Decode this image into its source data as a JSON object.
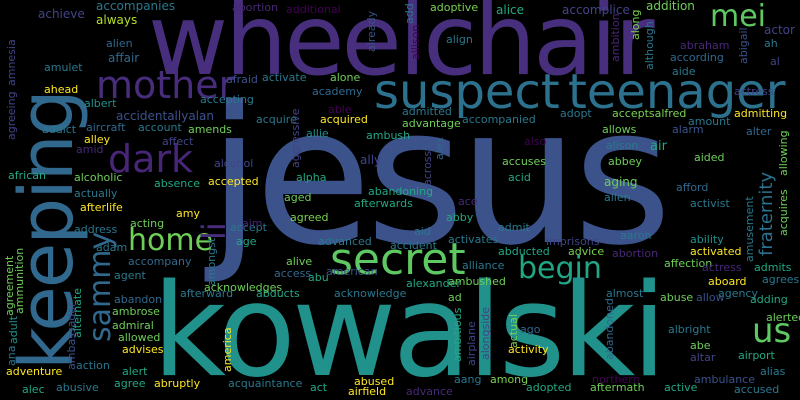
{
  "words": [
    {
      "text": "jesus",
      "color": "#3b528b"
    },
    {
      "text": "kowalski",
      "color": "#21918c"
    },
    {
      "text": "wheelchair",
      "color": "#472f7d"
    },
    {
      "text": "keeping",
      "color": "#31688e"
    },
    {
      "text": "suspect",
      "color": "#2c728e"
    },
    {
      "text": "teenager",
      "color": "#2c728e"
    },
    {
      "text": "mother",
      "color": "#472d7b"
    },
    {
      "text": "secret",
      "color": "#5ec962"
    },
    {
      "text": "home",
      "color": "#6ece58"
    },
    {
      "text": "dark",
      "color": "#482677"
    },
    {
      "text": "mei",
      "color": "#5ec962"
    },
    {
      "text": "begin",
      "color": "#21a685"
    },
    {
      "text": "sammy",
      "color": "#31688e"
    },
    {
      "text": "us",
      "color": "#5ec962"
    },
    {
      "text": "li",
      "color": "#472d7b"
    },
    {
      "text": "fraternity",
      "color": "#2c728e"
    },
    {
      "text": "always",
      "color": "#b5de2b"
    },
    {
      "text": "achieve",
      "color": "#414487"
    },
    {
      "text": "accompanies",
      "color": "#2a788e"
    },
    {
      "text": "abortion",
      "color": "#482878"
    },
    {
      "text": "additional",
      "color": "#440154"
    },
    {
      "text": "alice",
      "color": "#22a884"
    },
    {
      "text": "accomplice",
      "color": "#414487"
    },
    {
      "text": "addition",
      "color": "#6ece58"
    },
    {
      "text": "adoptive",
      "color": "#7ad151"
    },
    {
      "text": "add",
      "color": "#2a788e"
    },
    {
      "text": "already",
      "color": "#3b528b"
    },
    {
      "text": "allison",
      "color": "#440154"
    },
    {
      "text": "align",
      "color": "#2a788e"
    },
    {
      "text": "ambition",
      "color": "#482878"
    },
    {
      "text": "along",
      "color": "#7ad151"
    },
    {
      "text": "although",
      "color": "#2a788e"
    },
    {
      "text": "alien",
      "color": "#31688e"
    },
    {
      "text": "affair",
      "color": "#31688e"
    },
    {
      "text": "amulet",
      "color": "#2a788e"
    },
    {
      "text": "amnesia",
      "color": "#414487"
    },
    {
      "text": "agreeing",
      "color": "#414487"
    },
    {
      "text": "actor",
      "color": "#414487"
    },
    {
      "text": "ah",
      "color": "#2a788e"
    },
    {
      "text": "abraham",
      "color": "#482878"
    },
    {
      "text": "abigail",
      "color": "#3b528b"
    },
    {
      "text": "according",
      "color": "#31688e"
    },
    {
      "text": "aide",
      "color": "#2a788e"
    },
    {
      "text": "al",
      "color": "#414487"
    },
    {
      "text": "actress",
      "color": "#414487"
    },
    {
      "text": "alpha",
      "color": "#22a884"
    },
    {
      "text": "ahead",
      "color": "#fde725"
    },
    {
      "text": "albert",
      "color": "#21918c"
    },
    {
      "text": "afraid",
      "color": "#3b528b"
    },
    {
      "text": "activate",
      "color": "#2a788e"
    },
    {
      "text": "alone",
      "color": "#6ece58"
    },
    {
      "text": "academy",
      "color": "#31688e"
    },
    {
      "text": "accepting",
      "color": "#2a788e"
    },
    {
      "text": "able",
      "color": "#440154"
    },
    {
      "text": "accidentallyalan",
      "color": "#3b528b"
    },
    {
      "text": "aircraft",
      "color": "#31688e"
    },
    {
      "text": "account",
      "color": "#2a788e"
    },
    {
      "text": "addict",
      "color": "#2a788e"
    },
    {
      "text": "alley",
      "color": "#fde725"
    },
    {
      "text": "amid",
      "color": "#482878"
    },
    {
      "text": "affect",
      "color": "#414487"
    },
    {
      "text": "amends",
      "color": "#6ece58"
    },
    {
      "text": "acquire",
      "color": "#2a788e"
    },
    {
      "text": "acquired",
      "color": "#fde725"
    },
    {
      "text": "aggressive",
      "color": "#414487"
    },
    {
      "text": "allie",
      "color": "#21918c"
    },
    {
      "text": "ambush",
      "color": "#22a884"
    },
    {
      "text": "advantage",
      "color": "#6ece58"
    },
    {
      "text": "admitted",
      "color": "#2a788e"
    },
    {
      "text": "accompanied",
      "color": "#2a788e"
    },
    {
      "text": "adopt",
      "color": "#2a788e"
    },
    {
      "text": "acceptsalfred",
      "color": "#7ad151"
    },
    {
      "text": "amount",
      "color": "#2a788e"
    },
    {
      "text": "admitting",
      "color": "#fde725"
    },
    {
      "text": "alter",
      "color": "#31688e"
    },
    {
      "text": "allowing",
      "color": "#6ece58"
    },
    {
      "text": "alarm",
      "color": "#3b528b"
    },
    {
      "text": "allows",
      "color": "#6ece58"
    },
    {
      "text": "alison",
      "color": "#2a788e"
    },
    {
      "text": "air",
      "color": "#22a884"
    },
    {
      "text": "also",
      "color": "#440154"
    },
    {
      "text": "alex",
      "color": "#31688e"
    },
    {
      "text": "across",
      "color": "#414487"
    },
    {
      "text": "ally",
      "color": "#414487"
    },
    {
      "text": "accuses",
      "color": "#6ece58"
    },
    {
      "text": "abbey",
      "color": "#6ece58"
    },
    {
      "text": "aided",
      "color": "#6ece58"
    },
    {
      "text": "acquires",
      "color": "#6ece58"
    },
    {
      "text": "african",
      "color": "#22a884"
    },
    {
      "text": "alcohol",
      "color": "#414487"
    },
    {
      "text": "alcoholic",
      "color": "#6ece58"
    },
    {
      "text": "absence",
      "color": "#22a884"
    },
    {
      "text": "accepted",
      "color": "#fde725"
    },
    {
      "text": "acid",
      "color": "#22a884"
    },
    {
      "text": "aging",
      "color": "#6ece58"
    },
    {
      "text": "allen",
      "color": "#2a788e"
    },
    {
      "text": "afford",
      "color": "#31688e"
    },
    {
      "text": "activist",
      "color": "#2a788e"
    },
    {
      "text": "actually",
      "color": "#2a788e"
    },
    {
      "text": "afterlife",
      "color": "#fde725"
    },
    {
      "text": "amy",
      "color": "#fde725"
    },
    {
      "text": "aged",
      "color": "#6ece58"
    },
    {
      "text": "abandoning",
      "color": "#22a884"
    },
    {
      "text": "ace",
      "color": "#482878"
    },
    {
      "text": "abby",
      "color": "#22a884"
    },
    {
      "text": "afterwards",
      "color": "#22a884"
    },
    {
      "text": "abandon",
      "color": "#31688e"
    },
    {
      "text": "abandoned",
      "color": "#31688e"
    },
    {
      "text": "accept",
      "color": "#2a788e"
    },
    {
      "text": "address",
      "color": "#2a788e"
    },
    {
      "text": "acting",
      "color": "#6ece58"
    },
    {
      "text": "aim",
      "color": "#482878"
    },
    {
      "text": "agreed",
      "color": "#7ad151"
    },
    {
      "text": "aid",
      "color": "#2a788e"
    },
    {
      "text": "admit",
      "color": "#2a788e"
    },
    {
      "text": "aaron",
      "color": "#2a788e"
    },
    {
      "text": "ability",
      "color": "#21918c"
    },
    {
      "text": "amusement",
      "color": "#2a788e"
    },
    {
      "text": "adam",
      "color": "#2a788e"
    },
    {
      "text": "age",
      "color": "#22a884"
    },
    {
      "text": "amongst",
      "color": "#2a788e"
    },
    {
      "text": "advanced",
      "color": "#2a788e"
    },
    {
      "text": "accident",
      "color": "#2a788e"
    },
    {
      "text": "imprisons",
      "color": "#414487"
    },
    {
      "text": "activates",
      "color": "#2a788e"
    },
    {
      "text": "abducted",
      "color": "#22a884"
    },
    {
      "text": "advice",
      "color": "#7ad151"
    },
    {
      "text": "abortion",
      "color": "#482878"
    },
    {
      "text": "affection",
      "color": "#6ece58"
    },
    {
      "text": "activated",
      "color": "#fde725"
    },
    {
      "text": "actress",
      "color": "#482878"
    },
    {
      "text": "admits",
      "color": "#22a884"
    },
    {
      "text": "agreement",
      "color": "#6ece58"
    },
    {
      "text": "ammunition",
      "color": "#6ece58"
    },
    {
      "text": "agent",
      "color": "#2a788e"
    },
    {
      "text": "accompany",
      "color": "#31688e"
    },
    {
      "text": "alive",
      "color": "#6ece58"
    },
    {
      "text": "access",
      "color": "#31688e"
    },
    {
      "text": "abu",
      "color": "#22a884"
    },
    {
      "text": "american",
      "color": "#3b528b"
    },
    {
      "text": "alliance",
      "color": "#2a788e"
    },
    {
      "text": "alexander",
      "color": "#22a884"
    },
    {
      "text": "ambushed",
      "color": "#6ece58"
    },
    {
      "text": "aboard",
      "color": "#fde725"
    },
    {
      "text": "agrees",
      "color": "#2a788e"
    },
    {
      "text": "agency",
      "color": "#2a788e"
    },
    {
      "text": "adult",
      "color": "#21918c"
    },
    {
      "text": "ambassador",
      "color": "#3b528b"
    },
    {
      "text": "alternate",
      "color": "#22a884"
    },
    {
      "text": "afterward",
      "color": "#2a788e"
    },
    {
      "text": "abducts",
      "color": "#22a884"
    },
    {
      "text": "acknowledges",
      "color": "#6ece58"
    },
    {
      "text": "acknowledge",
      "color": "#2a788e"
    },
    {
      "text": "ad",
      "color": "#6ece58"
    },
    {
      "text": "almost",
      "color": "#2a788e"
    },
    {
      "text": "abuse",
      "color": "#6ece58"
    },
    {
      "text": "allow",
      "color": "#3b528b"
    },
    {
      "text": "adding",
      "color": "#22a884"
    },
    {
      "text": "airport",
      "color": "#22a884"
    },
    {
      "text": "alerted",
      "color": "#6ece58"
    },
    {
      "text": "ambrose",
      "color": "#6ece58"
    },
    {
      "text": "admiral",
      "color": "#6ece58"
    },
    {
      "text": "allowed",
      "color": "#6ece58"
    },
    {
      "text": "advises",
      "color": "#fde725"
    },
    {
      "text": "america",
      "color": "#fde725"
    },
    {
      "text": "airplane",
      "color": "#414487"
    },
    {
      "text": "alongside",
      "color": "#414487"
    },
    {
      "text": "ambitious",
      "color": "#22a884"
    },
    {
      "text": "actual",
      "color": "#7ad151"
    },
    {
      "text": "ago",
      "color": "#31688e"
    },
    {
      "text": "albright",
      "color": "#2a788e"
    },
    {
      "text": "abe",
      "color": "#6ece58"
    },
    {
      "text": "altar",
      "color": "#414487"
    },
    {
      "text": "ana",
      "color": "#2a788e"
    },
    {
      "text": "adventure",
      "color": "#fde725"
    },
    {
      "text": "action",
      "color": "#2a788e"
    },
    {
      "text": "alert",
      "color": "#22a884"
    },
    {
      "text": "activity",
      "color": "#fde725"
    },
    {
      "text": "aang",
      "color": "#2a788e"
    },
    {
      "text": "among",
      "color": "#7ad151"
    },
    {
      "text": "alias",
      "color": "#2a788e"
    },
    {
      "text": "ambulance",
      "color": "#3b528b"
    },
    {
      "text": "alec",
      "color": "#22a884"
    },
    {
      "text": "abusive",
      "color": "#2a788e"
    },
    {
      "text": "agree",
      "color": "#22a884"
    },
    {
      "text": "abruptly",
      "color": "#fde725"
    },
    {
      "text": "acquaintance",
      "color": "#2a788e"
    },
    {
      "text": "act",
      "color": "#22a884"
    },
    {
      "text": "abused",
      "color": "#fde725"
    },
    {
      "text": "airfield",
      "color": "#fde725"
    },
    {
      "text": "advance",
      "color": "#482878"
    },
    {
      "text": "adopted",
      "color": "#22a884"
    },
    {
      "text": "aftermath",
      "color": "#6ece58"
    },
    {
      "text": "northern",
      "color": "#440154"
    },
    {
      "text": "active",
      "color": "#22a884"
    },
    {
      "text": "accused",
      "color": "#2a788e"
    }
  ]
}
